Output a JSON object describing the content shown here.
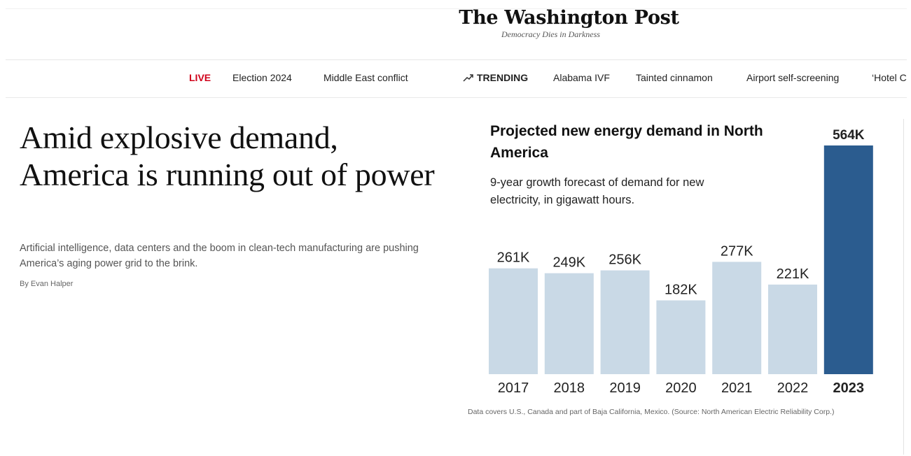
{
  "masthead": {
    "logo": "The Washington Post",
    "tagline": "Democracy Dies in Darkness"
  },
  "nav": {
    "live": "LIVE",
    "items_left": [
      "Election 2024",
      "Middle East conflict"
    ],
    "trending": "TRENDING",
    "items_trending": [
      "Alabama IVF",
      "Tainted cinnamon",
      "Airport self-screening",
      "‘Hotel C"
    ]
  },
  "article": {
    "headline": "Amid explosive demand, America is running out of power",
    "dek": "Artificial intelligence, data centers and the boom in clean-tech manufacturing are pushing America’s aging power grid to the brink.",
    "byline": "By Evan Halper"
  },
  "colors": {
    "bar": "#c9d9e6",
    "highlight": "#2b5c8f",
    "live": "#d0021b"
  },
  "chart_data": {
    "type": "bar",
    "title": "Projected new energy demand in North America",
    "subtitle": "9-year growth forecast of demand for new electricity, in gigawatt hours.",
    "categories": [
      "2017",
      "2018",
      "2019",
      "2020",
      "2021",
      "2022",
      "2023"
    ],
    "values": [
      261000,
      249000,
      256000,
      182000,
      277000,
      221000,
      564000
    ],
    "value_labels": [
      "261K",
      "249K",
      "256K",
      "182K",
      "277K",
      "221K",
      "564K"
    ],
    "highlight": "2023",
    "ylim": [
      0,
      564000
    ],
    "grid": false,
    "note": "Data covers U.S., Canada and part of Baja California, Mexico. (Source: North American Electric Reliability Corp.)"
  }
}
